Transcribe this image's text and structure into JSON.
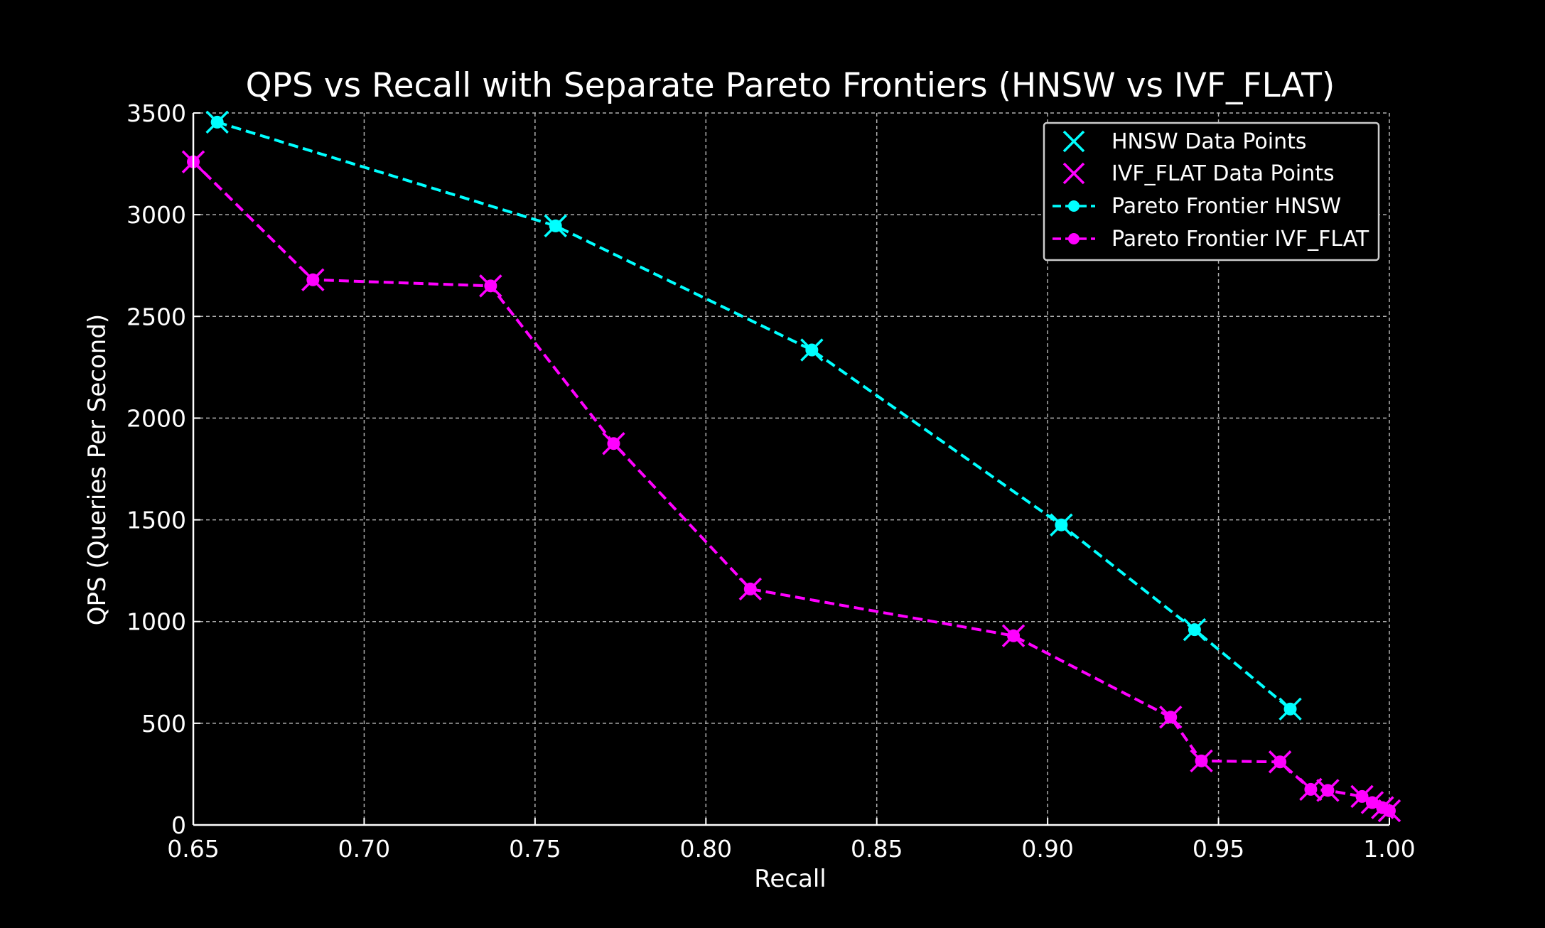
{
  "chart_data": {
    "type": "line",
    "title": "QPS vs Recall with Separate Pareto Frontiers (HNSW vs IVF_FLAT)",
    "xlabel": "Recall",
    "ylabel": "QPS (Queries Per Second)",
    "xlim": [
      0.65,
      1.0
    ],
    "ylim": [
      0,
      3500
    ],
    "xticks": [
      "0.65",
      "0.70",
      "0.75",
      "0.80",
      "0.85",
      "0.90",
      "0.95",
      "1.00"
    ],
    "yticks": [
      "0",
      "500",
      "1000",
      "1500",
      "2000",
      "2500",
      "3000",
      "3500"
    ],
    "grid": true,
    "legend_position": "top-right",
    "legend": [
      "HNSW Data Points",
      "IVF_FLAT Data Points",
      "Pareto Frontier HNSW",
      "Pareto Frontier IVF_FLAT"
    ],
    "series": [
      {
        "name": "HNSW",
        "color": "#00ffff",
        "x": [
          0.657,
          0.756,
          0.831,
          0.904,
          0.943,
          0.971
        ],
        "y": [
          3455,
          2945,
          2335,
          1475,
          960,
          570
        ]
      },
      {
        "name": "IVF_FLAT",
        "color": "#ff00ff",
        "x": [
          0.65,
          0.685,
          0.737,
          0.773,
          0.813,
          0.89,
          0.936,
          0.945,
          0.968,
          0.977,
          0.982,
          0.992,
          0.995,
          0.998,
          1.0
        ],
        "y": [
          3260,
          2680,
          2650,
          1875,
          1160,
          930,
          530,
          315,
          310,
          175,
          170,
          140,
          110,
          85,
          70
        ]
      }
    ]
  }
}
